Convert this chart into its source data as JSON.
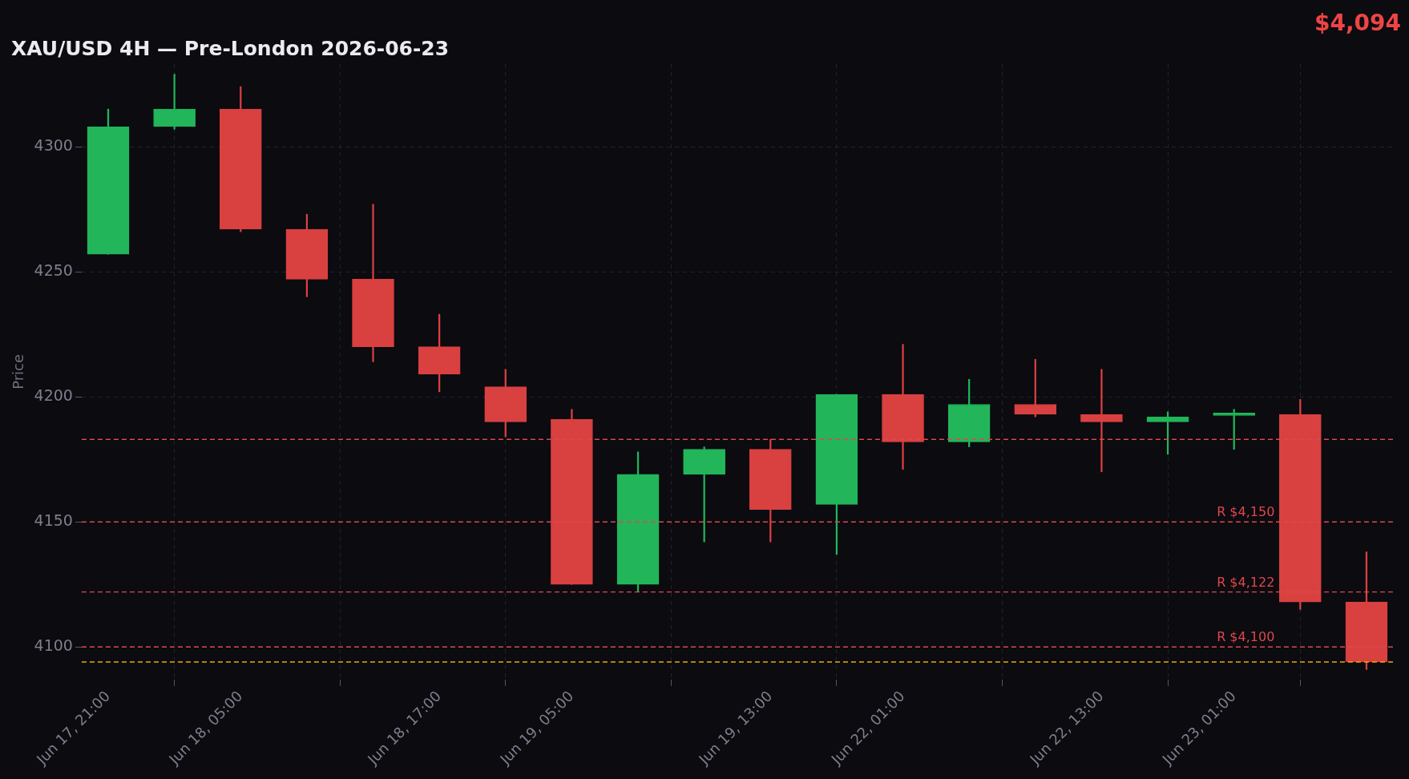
{
  "chart_data": {
    "type": "candlestick",
    "title": "XAU/USD 4H — Pre-London 2026-06-23",
    "ylabel": "Price",
    "annotations": [
      "$4,094"
    ],
    "categories": [
      "Jun 17, 21:00",
      null,
      "Jun 18, 05:00",
      null,
      null,
      "Jun 18, 17:00",
      null,
      "Jun 19, 05:00",
      null,
      null,
      "Jun 19, 13:00",
      null,
      "Jun 22, 01:00",
      null,
      null,
      "Jun 22, 13:00",
      null,
      "Jun 23, 01:00",
      null,
      null
    ],
    "ohlc": [
      [
        4257,
        4315,
        4257,
        4308
      ],
      [
        4308,
        4329,
        4307,
        4315
      ],
      [
        4315,
        4324,
        4266,
        4267
      ],
      [
        4267,
        4273,
        4240,
        4247
      ],
      [
        4247,
        4277,
        4214,
        4220
      ],
      [
        4220,
        4233,
        4202,
        4209
      ],
      [
        4204,
        4211,
        4184,
        4190
      ],
      [
        4191,
        4195,
        4125,
        4125
      ],
      [
        4125,
        4178,
        4122,
        4169
      ],
      [
        4169,
        4180,
        4142,
        4179
      ],
      [
        4179,
        4183,
        4142,
        4155
      ],
      [
        4157,
        4201,
        4137,
        4201
      ],
      [
        4201,
        4221,
        4171,
        4182
      ],
      [
        4182,
        4207,
        4180,
        4197
      ],
      [
        4197,
        4215,
        4192,
        4193
      ],
      [
        4193,
        4211,
        4170,
        4190
      ],
      [
        4190,
        4194,
        4177,
        4192
      ],
      [
        4192.5,
        4195,
        4179,
        4193.5
      ],
      [
        4193,
        4199,
        4115,
        4118
      ],
      [
        4118,
        4138,
        4091,
        4094
      ]
    ],
    "colors": [
      "#22b55a",
      "#22b55a",
      "#d94040",
      "#d94040",
      "#d94040",
      "#d94040",
      "#d94040",
      "#d94040",
      "#22b55a",
      "#22b55a",
      "#d94040",
      "#22b55a",
      "#d94040",
      "#22b55a",
      "#d94040",
      "#d94040",
      "#22b55a",
      "#22b55a",
      "#d94040",
      "#d94040"
    ],
    "ylim": [
      4087,
      4333
    ],
    "yticks": [
      4100,
      4150,
      4200,
      4250,
      4300
    ],
    "ref_lines": [
      {
        "axis": "y",
        "value": 4183,
        "color": "#e0474c",
        "line_style": "dashed"
      },
      {
        "axis": "y",
        "value": 4150,
        "label": "R $4,150",
        "color": "#e0474c",
        "line_style": "dashed"
      },
      {
        "axis": "y",
        "value": 4122,
        "label": "R $4,122",
        "color": "#e0474c",
        "line_style": "dashed"
      },
      {
        "axis": "y",
        "value": 4100,
        "label": "R $4,100",
        "color": "#e0474c",
        "line_style": "dashed"
      },
      {
        "axis": "y",
        "value": 4094,
        "color": "#f0a800",
        "line_style": "dashed"
      }
    ],
    "grid": true
  }
}
